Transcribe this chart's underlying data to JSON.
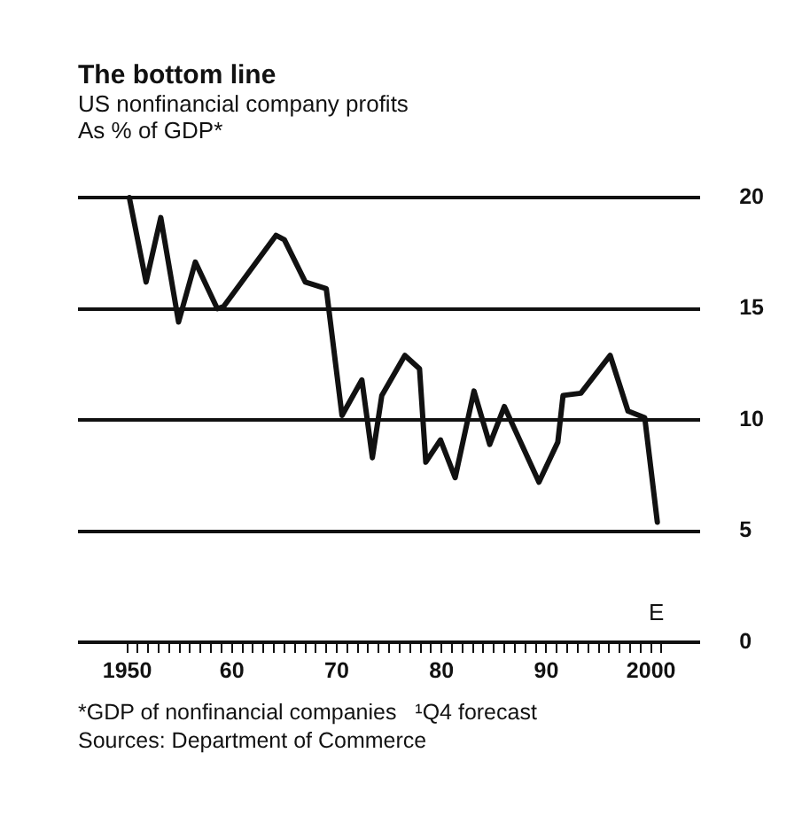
{
  "chart_data": {
    "type": "line",
    "title": "The bottom line",
    "subtitle": "US nonfinancial company profits",
    "ylabel": "As % of GDP*",
    "x": [
      1950.2,
      1951.8,
      1953.2,
      1954.9,
      1956.5,
      1958.6,
      1959.2,
      1964.2,
      1965.0,
      1967.0,
      1969.0,
      1970.5,
      1972.4,
      1973.4,
      1974.3,
      1976.5,
      1977.9,
      1978.5,
      1979.9,
      1981.3,
      1983.1,
      1984.6,
      1986.0,
      1989.3,
      1991.1,
      1991.6,
      1993.3,
      1996.1,
      1997.8,
      1999.4,
      2000.6
    ],
    "series": [
      {
        "color": "#111111",
        "values": [
          20.0,
          16.2,
          19.1,
          14.4,
          17.1,
          15.0,
          15.1,
          18.3,
          18.1,
          16.2,
          15.9,
          10.2,
          11.8,
          8.3,
          11.1,
          12.9,
          12.3,
          8.1,
          9.1,
          7.4,
          11.3,
          8.9,
          10.6,
          7.2,
          9.0,
          11.1,
          11.2,
          12.9,
          10.4,
          10.1,
          5.4
        ]
      }
    ],
    "xlim": [
      1945.3,
      2004.7
    ],
    "ylim": [
      0,
      20
    ],
    "xticks": [
      {
        "value": 1950,
        "label": "1950"
      },
      {
        "value": 1960,
        "label": "60"
      },
      {
        "value": 1970,
        "label": "70"
      },
      {
        "value": 1980,
        "label": "80"
      },
      {
        "value": 1990,
        "label": "90"
      },
      {
        "value": 2000,
        "label": "2000"
      },
      {
        "value": 1951,
        "label": null
      },
      {
        "value": 1952,
        "label": null
      },
      {
        "value": 1953,
        "label": null
      },
      {
        "value": 1954,
        "label": null
      },
      {
        "value": 1955,
        "label": null
      },
      {
        "value": 1956,
        "label": null
      },
      {
        "value": 1957,
        "label": null
      },
      {
        "value": 1958,
        "label": null
      },
      {
        "value": 1959,
        "label": null
      },
      {
        "value": 1961,
        "label": null
      },
      {
        "value": 1962,
        "label": null
      },
      {
        "value": 1963,
        "label": null
      },
      {
        "value": 1964,
        "label": null
      },
      {
        "value": 1965,
        "label": null
      },
      {
        "value": 1966,
        "label": null
      },
      {
        "value": 1967,
        "label": null
      },
      {
        "value": 1968,
        "label": null
      },
      {
        "value": 1969,
        "label": null
      },
      {
        "value": 1971,
        "label": null
      },
      {
        "value": 1972,
        "label": null
      },
      {
        "value": 1973,
        "label": null
      },
      {
        "value": 1974,
        "label": null
      },
      {
        "value": 1975,
        "label": null
      },
      {
        "value": 1976,
        "label": null
      },
      {
        "value": 1977,
        "label": null
      },
      {
        "value": 1978,
        "label": null
      },
      {
        "value": 1979,
        "label": null
      },
      {
        "value": 1981,
        "label": null
      },
      {
        "value": 1982,
        "label": null
      },
      {
        "value": 1983,
        "label": null
      },
      {
        "value": 1984,
        "label": null
      },
      {
        "value": 1985,
        "label": null
      },
      {
        "value": 1986,
        "label": null
      },
      {
        "value": 1987,
        "label": null
      },
      {
        "value": 1988,
        "label": null
      },
      {
        "value": 1989,
        "label": null
      },
      {
        "value": 1991,
        "label": null
      },
      {
        "value": 1992,
        "label": null
      },
      {
        "value": 1993,
        "label": null
      },
      {
        "value": 1994,
        "label": null
      },
      {
        "value": 1995,
        "label": null
      },
      {
        "value": 1996,
        "label": null
      },
      {
        "value": 1997,
        "label": null
      },
      {
        "value": 1998,
        "label": null
      },
      {
        "value": 1999,
        "label": null
      },
      {
        "value": 2001,
        "label": null
      }
    ],
    "yticks": [
      0,
      5,
      10,
      15,
      20
    ],
    "grid": "y",
    "line_style": "solid",
    "annotations": [
      "E",
      "*GDP of nonfinancial companies   ¹Q4 forecast",
      "Sources: Department of Commerce"
    ]
  }
}
